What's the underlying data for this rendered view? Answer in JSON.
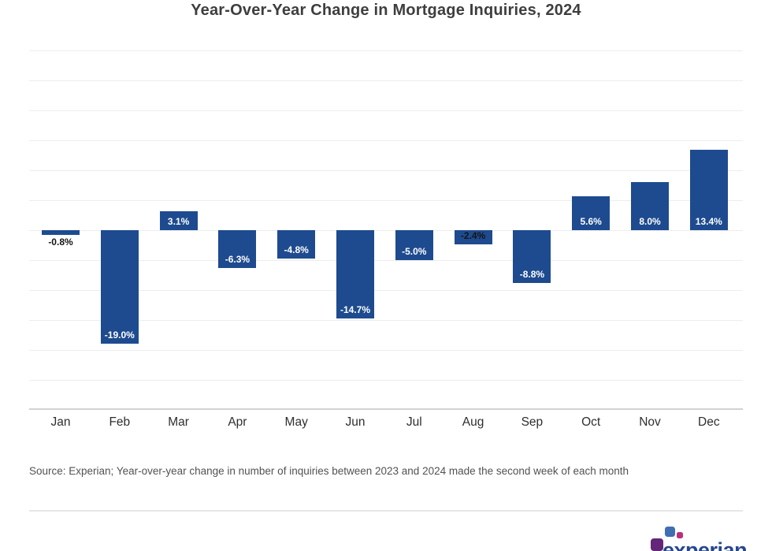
{
  "page": {
    "title": "Year-Over-Year Change in Mortgage Inquiries, 2024"
  },
  "chart_data": {
    "type": "bar",
    "title": "Year-Over-Year Change in Mortgage Inquiries, 2024",
    "categories": [
      "Jan",
      "Feb",
      "Mar",
      "Apr",
      "May",
      "Jun",
      "Jul",
      "Aug",
      "Sep",
      "Oct",
      "Nov",
      "Dec"
    ],
    "values": [
      -0.8,
      -19.0,
      3.1,
      -6.3,
      -4.8,
      -14.7,
      -5.0,
      -2.4,
      -8.8,
      5.6,
      8.0,
      13.4
    ],
    "value_labels": [
      "-0.8%",
      "-19.0%",
      "3.1%",
      "-6.3%",
      "-4.8%",
      "-14.7%",
      "-5.0%",
      "-2.4%",
      "-8.8%",
      "5.6%",
      "8.0%",
      "13.4%"
    ],
    "xlabel": "",
    "ylabel": "",
    "ylim": [
      -30,
      30
    ],
    "grid_step": 5,
    "grid": "horizontal gridlines, no tick labels",
    "legend": "none",
    "bar_color": "#1e4b8f",
    "label_color_inside": "#ffffff",
    "label_color_small_bar": "#151515"
  },
  "source_note": "Source: Experian; Year-over-year change in number of inquiries between 2023 and 2024 made the second week of each month",
  "logo": {
    "wordmark": "experian"
  },
  "colors": {
    "bar": "#1e4b8f",
    "gridline": "#ededed",
    "axis_line": "#d2d2d2",
    "title": "#3e3e3e",
    "axis_label": "#2e2e2e",
    "source": "#525252",
    "divider": "#e6e6e6",
    "logo_purple": "#632678",
    "logo_blue": "#406eb3",
    "logo_magenta": "#ba2f7d",
    "logo_text": "#26478d"
  }
}
